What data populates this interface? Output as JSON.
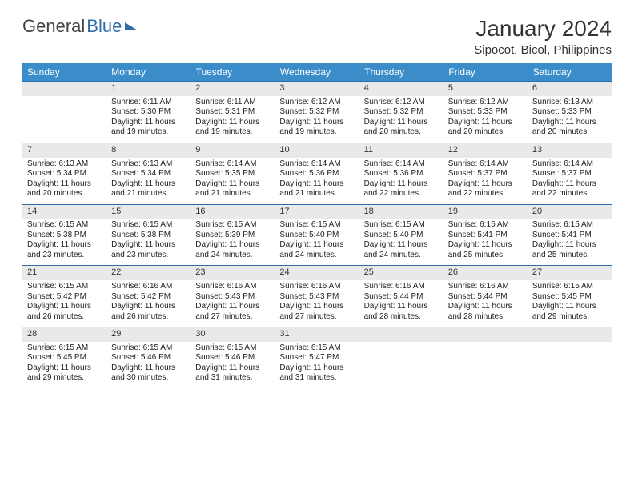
{
  "logo": {
    "general": "General",
    "blue": "Blue"
  },
  "title": "January 2024",
  "location": "Sipocot, Bicol, Philippines",
  "weekdays": [
    "Sunday",
    "Monday",
    "Tuesday",
    "Wednesday",
    "Thursday",
    "Friday",
    "Saturday"
  ],
  "colors": {
    "header_bg": "#3a8dc9",
    "header_text": "#ffffff",
    "divider": "#2f6da8",
    "daynum_bg": "#e9e9e9",
    "text": "#333333"
  },
  "weeks": [
    [
      null,
      {
        "n": "1",
        "sr": "Sunrise: 6:11 AM",
        "ss": "Sunset: 5:30 PM",
        "d1": "Daylight: 11 hours",
        "d2": "and 19 minutes."
      },
      {
        "n": "2",
        "sr": "Sunrise: 6:11 AM",
        "ss": "Sunset: 5:31 PM",
        "d1": "Daylight: 11 hours",
        "d2": "and 19 minutes."
      },
      {
        "n": "3",
        "sr": "Sunrise: 6:12 AM",
        "ss": "Sunset: 5:32 PM",
        "d1": "Daylight: 11 hours",
        "d2": "and 19 minutes."
      },
      {
        "n": "4",
        "sr": "Sunrise: 6:12 AM",
        "ss": "Sunset: 5:32 PM",
        "d1": "Daylight: 11 hours",
        "d2": "and 20 minutes."
      },
      {
        "n": "5",
        "sr": "Sunrise: 6:12 AM",
        "ss": "Sunset: 5:33 PM",
        "d1": "Daylight: 11 hours",
        "d2": "and 20 minutes."
      },
      {
        "n": "6",
        "sr": "Sunrise: 6:13 AM",
        "ss": "Sunset: 5:33 PM",
        "d1": "Daylight: 11 hours",
        "d2": "and 20 minutes."
      }
    ],
    [
      {
        "n": "7",
        "sr": "Sunrise: 6:13 AM",
        "ss": "Sunset: 5:34 PM",
        "d1": "Daylight: 11 hours",
        "d2": "and 20 minutes."
      },
      {
        "n": "8",
        "sr": "Sunrise: 6:13 AM",
        "ss": "Sunset: 5:34 PM",
        "d1": "Daylight: 11 hours",
        "d2": "and 21 minutes."
      },
      {
        "n": "9",
        "sr": "Sunrise: 6:14 AM",
        "ss": "Sunset: 5:35 PM",
        "d1": "Daylight: 11 hours",
        "d2": "and 21 minutes."
      },
      {
        "n": "10",
        "sr": "Sunrise: 6:14 AM",
        "ss": "Sunset: 5:36 PM",
        "d1": "Daylight: 11 hours",
        "d2": "and 21 minutes."
      },
      {
        "n": "11",
        "sr": "Sunrise: 6:14 AM",
        "ss": "Sunset: 5:36 PM",
        "d1": "Daylight: 11 hours",
        "d2": "and 22 minutes."
      },
      {
        "n": "12",
        "sr": "Sunrise: 6:14 AM",
        "ss": "Sunset: 5:37 PM",
        "d1": "Daylight: 11 hours",
        "d2": "and 22 minutes."
      },
      {
        "n": "13",
        "sr": "Sunrise: 6:14 AM",
        "ss": "Sunset: 5:37 PM",
        "d1": "Daylight: 11 hours",
        "d2": "and 22 minutes."
      }
    ],
    [
      {
        "n": "14",
        "sr": "Sunrise: 6:15 AM",
        "ss": "Sunset: 5:38 PM",
        "d1": "Daylight: 11 hours",
        "d2": "and 23 minutes."
      },
      {
        "n": "15",
        "sr": "Sunrise: 6:15 AM",
        "ss": "Sunset: 5:38 PM",
        "d1": "Daylight: 11 hours",
        "d2": "and 23 minutes."
      },
      {
        "n": "16",
        "sr": "Sunrise: 6:15 AM",
        "ss": "Sunset: 5:39 PM",
        "d1": "Daylight: 11 hours",
        "d2": "and 24 minutes."
      },
      {
        "n": "17",
        "sr": "Sunrise: 6:15 AM",
        "ss": "Sunset: 5:40 PM",
        "d1": "Daylight: 11 hours",
        "d2": "and 24 minutes."
      },
      {
        "n": "18",
        "sr": "Sunrise: 6:15 AM",
        "ss": "Sunset: 5:40 PM",
        "d1": "Daylight: 11 hours",
        "d2": "and 24 minutes."
      },
      {
        "n": "19",
        "sr": "Sunrise: 6:15 AM",
        "ss": "Sunset: 5:41 PM",
        "d1": "Daylight: 11 hours",
        "d2": "and 25 minutes."
      },
      {
        "n": "20",
        "sr": "Sunrise: 6:15 AM",
        "ss": "Sunset: 5:41 PM",
        "d1": "Daylight: 11 hours",
        "d2": "and 25 minutes."
      }
    ],
    [
      {
        "n": "21",
        "sr": "Sunrise: 6:15 AM",
        "ss": "Sunset: 5:42 PM",
        "d1": "Daylight: 11 hours",
        "d2": "and 26 minutes."
      },
      {
        "n": "22",
        "sr": "Sunrise: 6:16 AM",
        "ss": "Sunset: 5:42 PM",
        "d1": "Daylight: 11 hours",
        "d2": "and 26 minutes."
      },
      {
        "n": "23",
        "sr": "Sunrise: 6:16 AM",
        "ss": "Sunset: 5:43 PM",
        "d1": "Daylight: 11 hours",
        "d2": "and 27 minutes."
      },
      {
        "n": "24",
        "sr": "Sunrise: 6:16 AM",
        "ss": "Sunset: 5:43 PM",
        "d1": "Daylight: 11 hours",
        "d2": "and 27 minutes."
      },
      {
        "n": "25",
        "sr": "Sunrise: 6:16 AM",
        "ss": "Sunset: 5:44 PM",
        "d1": "Daylight: 11 hours",
        "d2": "and 28 minutes."
      },
      {
        "n": "26",
        "sr": "Sunrise: 6:16 AM",
        "ss": "Sunset: 5:44 PM",
        "d1": "Daylight: 11 hours",
        "d2": "and 28 minutes."
      },
      {
        "n": "27",
        "sr": "Sunrise: 6:15 AM",
        "ss": "Sunset: 5:45 PM",
        "d1": "Daylight: 11 hours",
        "d2": "and 29 minutes."
      }
    ],
    [
      {
        "n": "28",
        "sr": "Sunrise: 6:15 AM",
        "ss": "Sunset: 5:45 PM",
        "d1": "Daylight: 11 hours",
        "d2": "and 29 minutes."
      },
      {
        "n": "29",
        "sr": "Sunrise: 6:15 AM",
        "ss": "Sunset: 5:46 PM",
        "d1": "Daylight: 11 hours",
        "d2": "and 30 minutes."
      },
      {
        "n": "30",
        "sr": "Sunrise: 6:15 AM",
        "ss": "Sunset: 5:46 PM",
        "d1": "Daylight: 11 hours",
        "d2": "and 31 minutes."
      },
      {
        "n": "31",
        "sr": "Sunrise: 6:15 AM",
        "ss": "Sunset: 5:47 PM",
        "d1": "Daylight: 11 hours",
        "d2": "and 31 minutes."
      },
      null,
      null,
      null
    ]
  ]
}
